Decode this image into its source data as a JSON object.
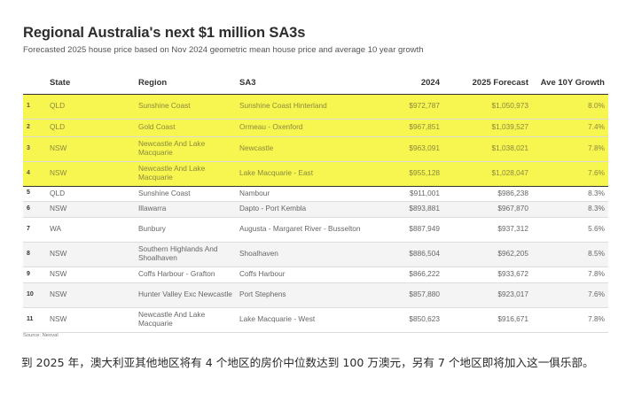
{
  "chart_data": {
    "type": "table",
    "title": "Regional Australia's next $1 million SA3s",
    "subtitle": "Forecasted 2025 house price based on Nov 2024 geometric mean house price and average 10 year growth",
    "columns": [
      "",
      "State",
      "Region",
      "SA3",
      "2024",
      "2025 Forecast",
      "Ave 10Y Growth"
    ],
    "rows": [
      {
        "rank": "1",
        "state": "QLD",
        "region": "Sunshine Coast",
        "sa3": "Sunshine Coast Hinterland",
        "p2024": "$972,787",
        "p2025": "$1,050,973",
        "growth": "8.0%",
        "highlight": true
      },
      {
        "rank": "2",
        "state": "QLD",
        "region": "Gold Coast",
        "sa3": "Ormeau - Oxenford",
        "p2024": "$967,851",
        "p2025": "$1,039,527",
        "growth": "7.4%",
        "highlight": true
      },
      {
        "rank": "3",
        "state": "NSW",
        "region": "Newcastle And Lake Macquarie",
        "sa3": "Newcastle",
        "p2024": "$963,091",
        "p2025": "$1,038,021",
        "growth": "7.8%",
        "highlight": true
      },
      {
        "rank": "4",
        "state": "NSW",
        "region": "Newcastle And Lake Macquarie",
        "sa3": "Lake Macquarie - East",
        "p2024": "$955,128",
        "p2025": "$1,028,047",
        "growth": "7.6%",
        "highlight": true
      },
      {
        "rank": "5",
        "state": "QLD",
        "region": "Sunshine Coast",
        "sa3": "Nambour",
        "p2024": "$911,001",
        "p2025": "$986,238",
        "growth": "8.3%",
        "highlight": false
      },
      {
        "rank": "6",
        "state": "NSW",
        "region": "Illawarra",
        "sa3": "Dapto - Port Kembla",
        "p2024": "$893,881",
        "p2025": "$967,870",
        "growth": "8.3%",
        "highlight": false
      },
      {
        "rank": "7",
        "state": "WA",
        "region": "Bunbury",
        "sa3": "Augusta - Margaret River - Busselton",
        "p2024": "$887,949",
        "p2025": "$937,312",
        "growth": "5.6%",
        "highlight": false
      },
      {
        "rank": "8",
        "state": "NSW",
        "region": "Southern Highlands And Shoalhaven",
        "sa3": "Shoalhaven",
        "p2024": "$886,504",
        "p2025": "$962,205",
        "growth": "8.5%",
        "highlight": false
      },
      {
        "rank": "9",
        "state": "NSW",
        "region": "Coffs Harbour - Grafton",
        "sa3": "Coffs Harbour",
        "p2024": "$866,222",
        "p2025": "$933,672",
        "growth": "7.8%",
        "highlight": false
      },
      {
        "rank": "10",
        "state": "NSW",
        "region": "Hunter Valley Exc Newcastle",
        "sa3": "Port Stephens",
        "p2024": "$857,880",
        "p2025": "$923,017",
        "growth": "7.6%",
        "highlight": false
      },
      {
        "rank": "11",
        "state": "NSW",
        "region": "Newcastle And Lake Macquarie",
        "sa3": "Lake Macquarie - West",
        "p2024": "$850,623",
        "p2025": "$916,671",
        "growth": "7.8%",
        "highlight": false
      }
    ],
    "source": "Source: Neoval"
  },
  "colors": {
    "highlight": "#f7f550",
    "stripe": "#f4f4f4"
  },
  "caption": "到 2025 年，澳大利亚其他地区将有 4 个地区的房价中位数达到 100 万澳元，另有 7 个地区即将加入这一俱乐部。"
}
